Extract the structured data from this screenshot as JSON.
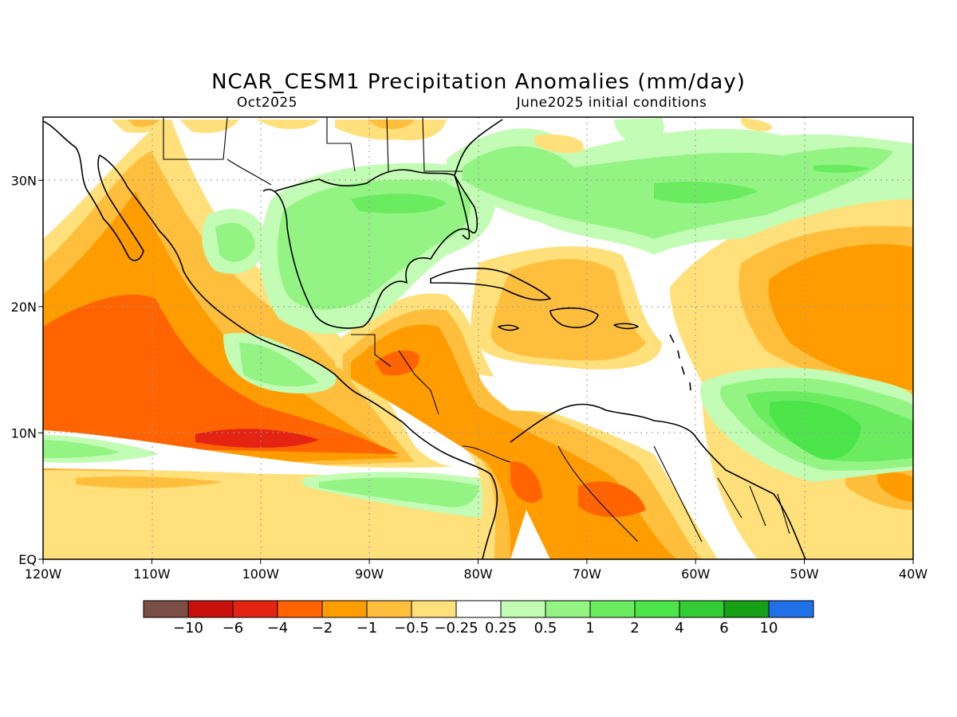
{
  "title": "NCAR_CESM1 Precipitation Anomalies (mm/day)",
  "subtitle_left": "Oct2025",
  "subtitle_right": "June2025 initial conditions",
  "map": {
    "lon_range": [
      -120,
      -40
    ],
    "lat_range": [
      0,
      35
    ],
    "x_ticks": [
      {
        "lon": -120,
        "label": "120W"
      },
      {
        "lon": -110,
        "label": "110W"
      },
      {
        "lon": -100,
        "label": "100W"
      },
      {
        "lon": -90,
        "label": "90W"
      },
      {
        "lon": -80,
        "label": "80W"
      },
      {
        "lon": -70,
        "label": "70W"
      },
      {
        "lon": -60,
        "label": "60W"
      },
      {
        "lon": -50,
        "label": "50W"
      },
      {
        "lon": -40,
        "label": "40W"
      }
    ],
    "y_ticks": [
      {
        "lat": 0,
        "label": "EQ"
      },
      {
        "lat": 10,
        "label": "10N"
      },
      {
        "lat": 20,
        "label": "20N"
      },
      {
        "lat": 30,
        "label": "30N"
      }
    ]
  },
  "colorbar": {
    "colors": [
      "#7a4e44",
      "#c8110c",
      "#e42313",
      "#ff6400",
      "#ff9d00",
      "#ffbf3d",
      "#ffe07a",
      "#ffffff",
      "#c3fcb4",
      "#93f484",
      "#6bec60",
      "#4be449",
      "#34cc34",
      "#15a015",
      "#2070e8"
    ],
    "labels": [
      "-10",
      "-6",
      "-4",
      "-2",
      "-1",
      "-0.5",
      "-0.25",
      "0.25",
      "0.5",
      "1",
      "2",
      "4",
      "6",
      "10"
    ]
  }
}
